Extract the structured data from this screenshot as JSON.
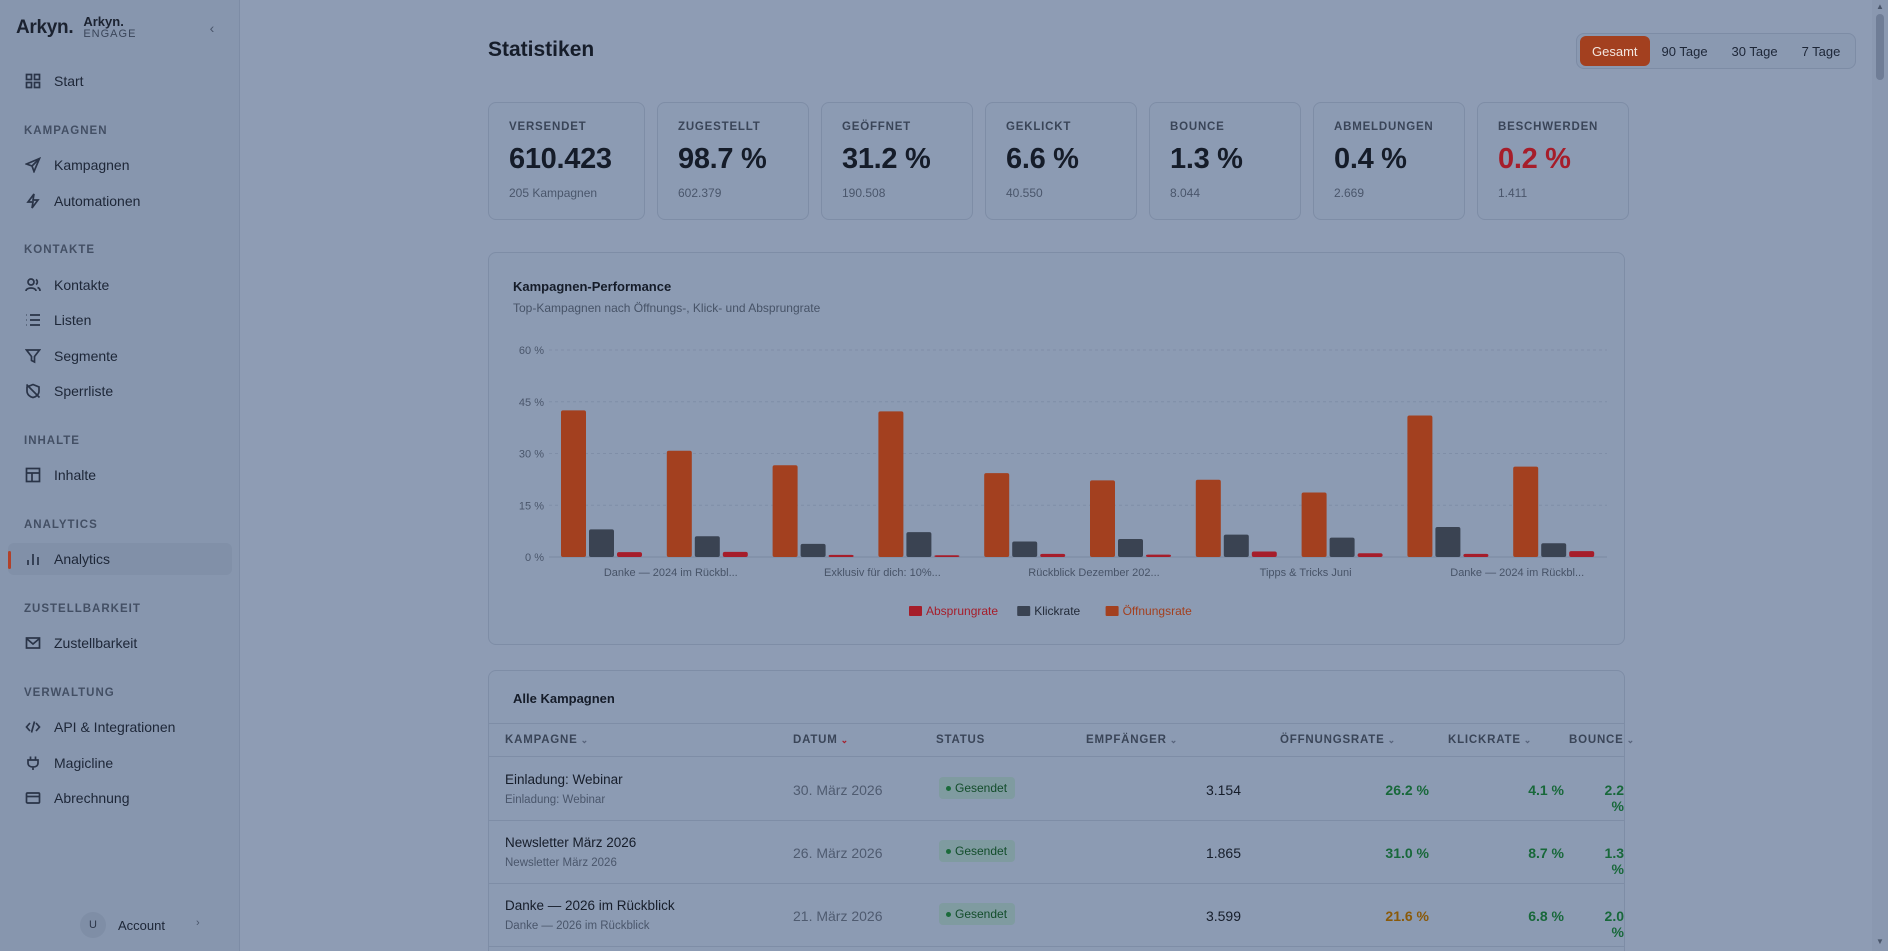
{
  "brand": {
    "logo": "Arkyn.",
    "name": "Arkyn.",
    "sub": "ENGAGE"
  },
  "sidebar": {
    "start": "Start",
    "sections": {
      "kampagnen": "KAMPAGNEN",
      "kontakte": "KONTAKTE",
      "inhalte": "INHALTE",
      "analytics": "ANALYTICS",
      "zustellbarkeit": "ZUSTELLBARKEIT",
      "verwaltung": "VERWALTUNG"
    },
    "items": {
      "kampagnen": "Kampagnen",
      "automationen": "Automationen",
      "kontakte": "Kontakte",
      "listen": "Listen",
      "segmente": "Segmente",
      "sperrliste": "Sperrliste",
      "inhalte": "Inhalte",
      "analytics": "Analytics",
      "zustellbarkeit": "Zustellbarkeit",
      "api": "API & Integrationen",
      "magicline": "Magicline",
      "abrechnung": "Abrechnung"
    },
    "account": {
      "initial": "U",
      "label": "Account"
    }
  },
  "page": {
    "title": "Statistiken"
  },
  "range": {
    "gesamt": "Gesamt",
    "d90": "90 Tage",
    "d30": "30 Tage",
    "d7": "7 Tage",
    "active": "Gesamt"
  },
  "stats": [
    {
      "label": "VERSENDET",
      "value": "610.423",
      "sub": "205 Kampagnen"
    },
    {
      "label": "ZUGESTELLT",
      "value": "98.7 %",
      "sub": "602.379"
    },
    {
      "label": "GEÖFFNET",
      "value": "31.2 %",
      "sub": "190.508"
    },
    {
      "label": "GEKLICKT",
      "value": "6.6 %",
      "sub": "40.550"
    },
    {
      "label": "BOUNCE",
      "value": "1.3 %",
      "sub": "8.044"
    },
    {
      "label": "ABMELDUNGEN",
      "value": "0.4 %",
      "sub": "2.669"
    },
    {
      "label": "BESCHWERDEN",
      "value": "0.2 %",
      "sub": "1.411"
    }
  ],
  "chart": {
    "title": "Kampagnen-Performance",
    "subtitle": "Top-Kampagnen nach Öffnungs-, Klick- und Absprungrate"
  },
  "chart_data": {
    "type": "bar",
    "ylim": [
      0,
      60
    ],
    "yticks": [
      "0 %",
      "15 %",
      "30 %",
      "45 %",
      "60 %"
    ],
    "ytick_values": [
      0,
      15,
      30,
      45,
      60
    ],
    "xtick_labels": [
      "Danke — 2024 im Rückbl...",
      "Exklusiv für dich: 10%...",
      "Rückblick Dezember 202...",
      "Tipps & Tricks Juni",
      "Danke — 2024 im Rückbl..."
    ],
    "grid": true,
    "legend_position": "bottom",
    "series": [
      {
        "name": "Öffnungsrate",
        "color": "#a3401f",
        "values": [
          42.5,
          30.8,
          26.6,
          42.2,
          24.3,
          22.2,
          22.4,
          18.7,
          41.0,
          26.2
        ]
      },
      {
        "name": "Klickrate",
        "color": "#3a4352",
        "values": [
          8.0,
          6.0,
          3.8,
          7.2,
          4.5,
          5.2,
          6.5,
          5.6,
          8.7,
          4.0
        ]
      },
      {
        "name": "Absprungrate",
        "color": "#a61d2a",
        "values": [
          1.4,
          1.5,
          0.6,
          0.5,
          0.9,
          0.7,
          1.6,
          1.1,
          0.9,
          1.7
        ]
      }
    ],
    "legend_order": [
      "Absprungrate",
      "Klickrate",
      "Öffnungsrate"
    ]
  },
  "table": {
    "title": "Alle Kampagnen",
    "headers": {
      "kampagne": "KAMPAGNE",
      "datum": "DATUM",
      "status": "STATUS",
      "empfaenger": "EMPFÄNGER",
      "oeffnung": "ÖFFNUNGSRATE",
      "klick": "KLICKRATE",
      "bounce": "BOUNCE"
    },
    "rows": [
      {
        "name": "Einladung: Webinar",
        "sub": "Einladung: Webinar",
        "date": "30. März 2026",
        "status": "Gesendet",
        "recipients": "3.154",
        "open": "26.2 %",
        "open_color": "green",
        "click": "4.1 %",
        "bounce": "2.2 %"
      },
      {
        "name": "Newsletter März 2026",
        "sub": "Newsletter März 2026",
        "date": "26. März 2026",
        "status": "Gesendet",
        "recipients": "1.865",
        "open": "31.0 %",
        "open_color": "green",
        "click": "8.7 %",
        "bounce": "1.3 %"
      },
      {
        "name": "Danke — 2026 im Rückblick",
        "sub": "Danke — 2026 im Rückblick",
        "date": "21. März 2026",
        "status": "Gesendet",
        "recipients": "3.599",
        "open": "21.6 %",
        "open_color": "amber",
        "click": "6.8 %",
        "bounce": "2.0 %"
      }
    ]
  }
}
